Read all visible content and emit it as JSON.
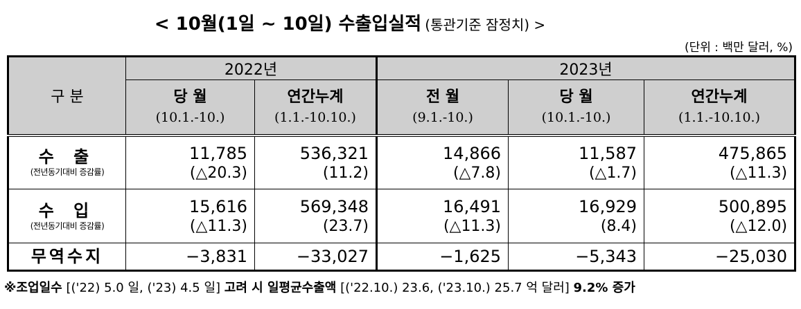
{
  "title": {
    "main": "< 10월(1일 ~ 10일) 수출입실적",
    "sub": "(통관기준  잠정치) >"
  },
  "unit": "(단위 : 백만  달러, %)",
  "table": {
    "corner": "구 분",
    "year_2022": "2022년",
    "year_2023": "2023년",
    "columns": [
      {
        "name": "당 월",
        "period": "(10.1.-10.)"
      },
      {
        "name": "연간누계",
        "period": "(1.1.-10.10.)"
      },
      {
        "name": "전 월",
        "period": "(9.1.-10.)"
      },
      {
        "name": "당 월",
        "period": "(10.1.-10.)"
      },
      {
        "name": "연간누계",
        "period": "(1.1.-10.10.)"
      }
    ],
    "rows": [
      {
        "label": "수 출",
        "sublabel": "(전년동기대비 증감률)",
        "values": [
          "11,785",
          "536,321",
          "14,866",
          "11,587",
          "475,865"
        ],
        "changes": [
          "(△20.3)",
          "(11.2)",
          "(△7.8)",
          "(△1.7)",
          "(△11.3)"
        ]
      },
      {
        "label": "수 입",
        "sublabel": "(전년동기대비 증감률)",
        "values": [
          "15,616",
          "569,348",
          "16,491",
          "16,929",
          "500,895"
        ],
        "changes": [
          "(△11.3)",
          "(23.7)",
          "(△11.3)",
          "(8.4)",
          "(△12.0)"
        ]
      }
    ],
    "trade_balance": {
      "label": "무역수지",
      "values": [
        "−3,831",
        "−33,027",
        "−1,625",
        "−5,343",
        "−25,030"
      ]
    }
  },
  "note": {
    "prefix": "※조업일수",
    "days": "[('22) 5.0 일, ('23) 4.5 일]",
    "mid": "고려  시  일평균수출액",
    "avg": "[('22.10.) 23.6, ('23.10.) 25.7 억  달러]",
    "result": "9.2% 증가"
  }
}
